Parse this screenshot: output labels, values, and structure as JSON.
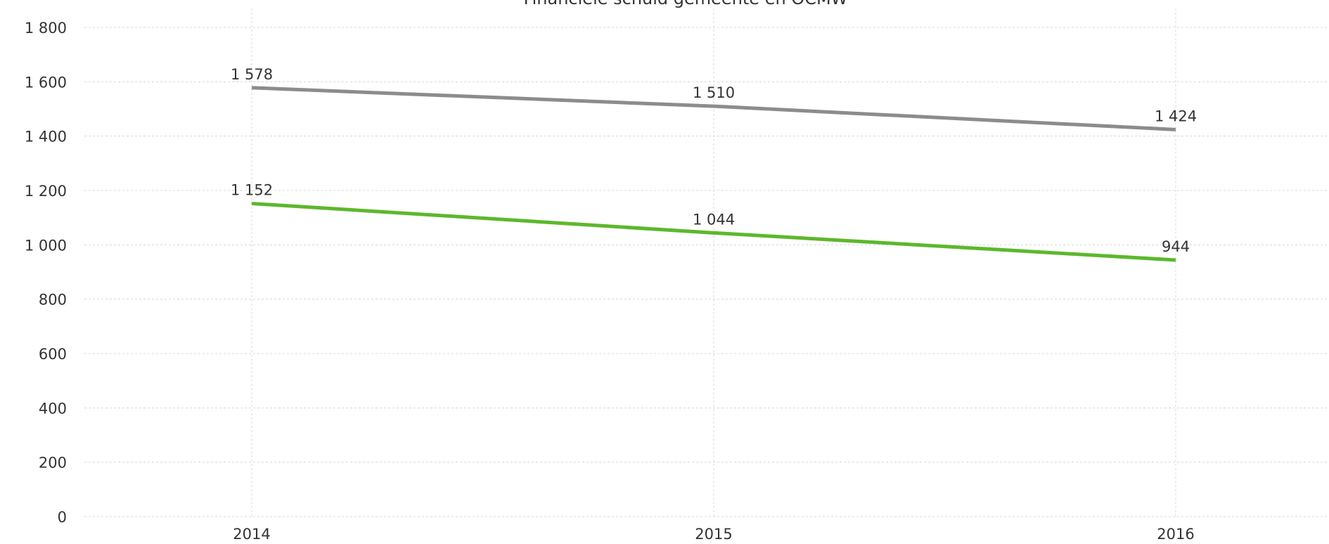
{
  "chart_data": {
    "type": "line",
    "title": "Financiële schuld gemeente en OCMW",
    "categories": [
      "2014",
      "2015",
      "2016"
    ],
    "series": [
      {
        "color": "#8c8c8c",
        "values": [
          1578,
          1510,
          1424
        ],
        "value_labels": [
          "1 578",
          "1 510",
          "1 424"
        ]
      },
      {
        "color": "#5cb82c",
        "values": [
          1152,
          1044,
          944
        ],
        "value_labels": [
          "1 152",
          "1 044",
          "944"
        ]
      }
    ],
    "ylim": [
      0,
      1800
    ],
    "yticks": [
      0,
      200,
      400,
      600,
      800,
      {
        "value": 1000,
        "label": "1 000"
      },
      {
        "value": 1200,
        "label": "1 200"
      },
      {
        "value": 1400,
        "label": "1 400"
      },
      {
        "value": 1600,
        "label": "1 600"
      },
      {
        "value": 1800,
        "label": "1 800"
      }
    ],
    "grid": true
  }
}
